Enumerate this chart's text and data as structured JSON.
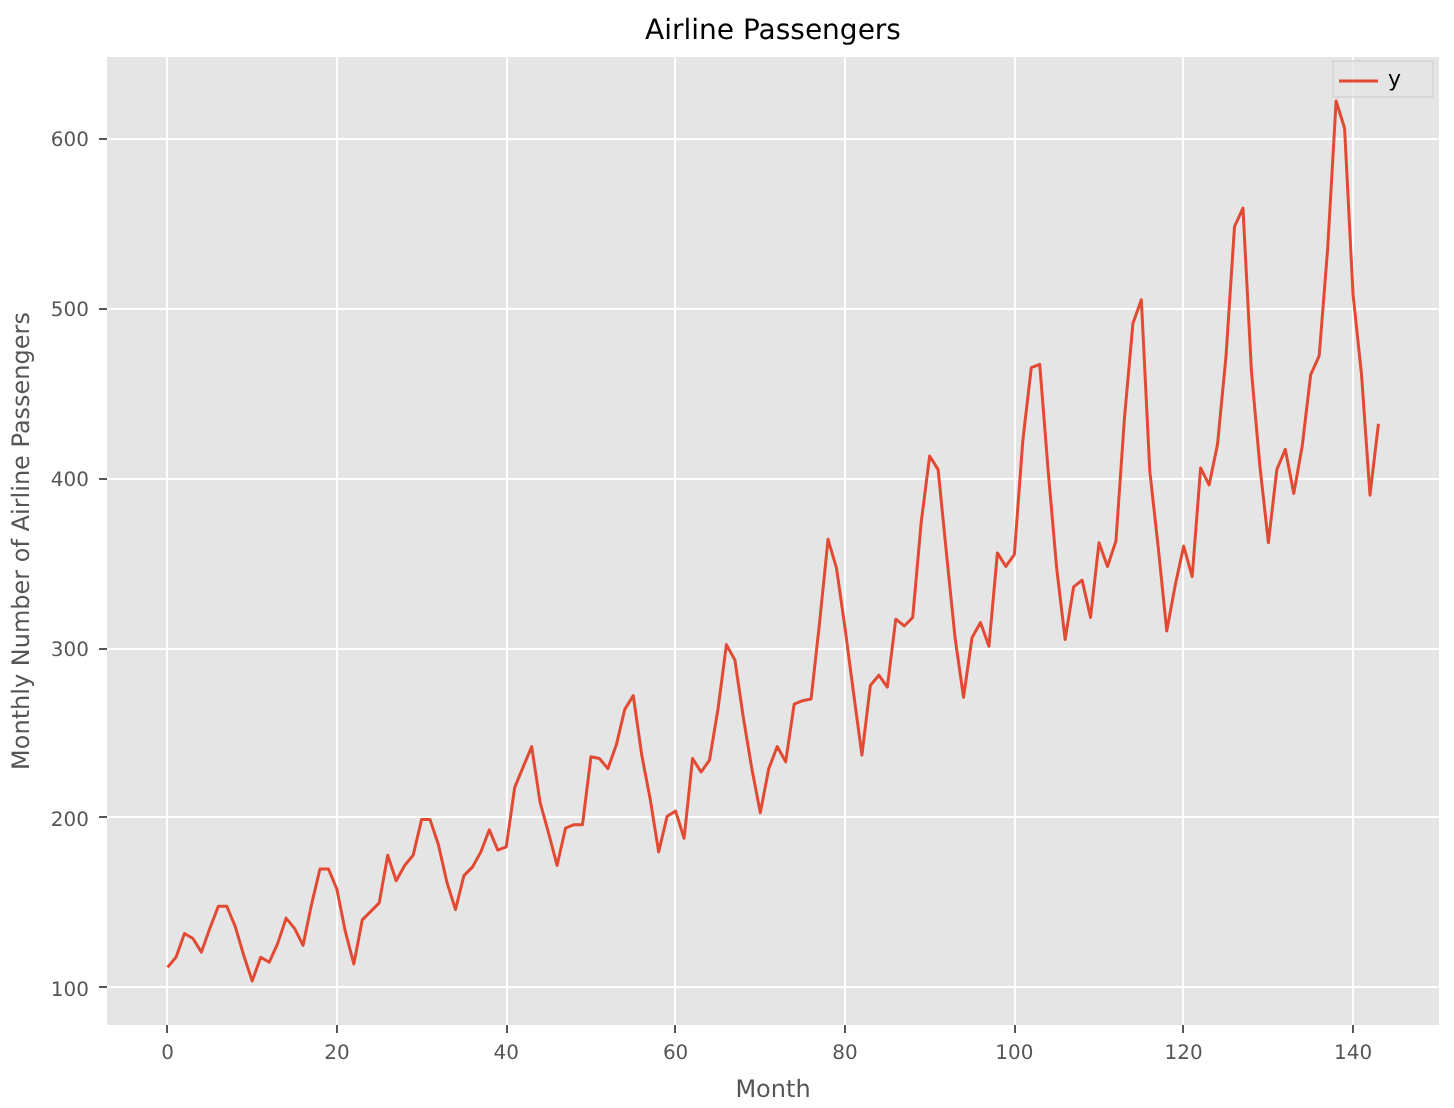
{
  "chart_data": {
    "type": "line",
    "title": "Airline Passengers",
    "xlabel": "Month",
    "ylabel": "Monthly Number of Airline Passengers",
    "x": [
      0,
      1,
      2,
      3,
      4,
      5,
      6,
      7,
      8,
      9,
      10,
      11,
      12,
      13,
      14,
      15,
      16,
      17,
      18,
      19,
      20,
      21,
      22,
      23,
      24,
      25,
      26,
      27,
      28,
      29,
      30,
      31,
      32,
      33,
      34,
      35,
      36,
      37,
      38,
      39,
      40,
      41,
      42,
      43,
      44,
      45,
      46,
      47,
      48,
      49,
      50,
      51,
      52,
      53,
      54,
      55,
      56,
      57,
      58,
      59,
      60,
      61,
      62,
      63,
      64,
      65,
      66,
      67,
      68,
      69,
      70,
      71,
      72,
      73,
      74,
      75,
      76,
      77,
      78,
      79,
      80,
      81,
      82,
      83,
      84,
      85,
      86,
      87,
      88,
      89,
      90,
      91,
      92,
      93,
      94,
      95,
      96,
      97,
      98,
      99,
      100,
      101,
      102,
      103,
      104,
      105,
      106,
      107,
      108,
      109,
      110,
      111,
      112,
      113,
      114,
      115,
      116,
      117,
      118,
      119,
      120,
      121,
      122,
      123,
      124,
      125,
      126,
      127,
      128,
      129,
      130,
      131,
      132,
      133,
      134,
      135,
      136,
      137,
      138,
      139,
      140,
      141,
      142,
      143
    ],
    "series": [
      {
        "name": "y",
        "color": "#e24a33",
        "values": [
          112,
          118,
          132,
          129,
          121,
          135,
          148,
          148,
          136,
          119,
          104,
          118,
          115,
          126,
          141,
          135,
          125,
          149,
          170,
          170,
          158,
          133,
          114,
          140,
          145,
          150,
          178,
          163,
          172,
          178,
          199,
          199,
          184,
          162,
          146,
          166,
          171,
          180,
          193,
          181,
          183,
          218,
          230,
          242,
          209,
          191,
          172,
          194,
          196,
          196,
          236,
          235,
          229,
          243,
          264,
          272,
          237,
          211,
          180,
          201,
          204,
          188,
          235,
          227,
          234,
          264,
          302,
          293,
          259,
          229,
          203,
          229,
          242,
          233,
          267,
          269,
          270,
          315,
          364,
          347,
          312,
          274,
          237,
          278,
          284,
          277,
          317,
          313,
          318,
          374,
          413,
          405,
          355,
          306,
          271,
          306,
          315,
          301,
          356,
          348,
          355,
          422,
          465,
          467,
          404,
          347,
          305,
          336,
          340,
          318,
          362,
          348,
          363,
          435,
          491,
          505,
          404,
          359,
          310,
          337,
          360,
          342,
          406,
          396,
          420,
          472,
          548,
          559,
          463,
          407,
          362,
          405,
          417,
          391,
          419,
          461,
          472,
          535,
          622,
          606,
          508,
          461,
          390,
          432
        ]
      }
    ],
    "xlim": [
      -7.15,
      150.15
    ],
    "ylim": [
      78.1,
      647.9
    ],
    "xticks": [
      0,
      20,
      40,
      60,
      80,
      100,
      120,
      140
    ],
    "yticks": [
      100,
      200,
      300,
      400,
      500,
      600
    ],
    "grid": true,
    "legend": "top right",
    "line_style": "solid",
    "marker": "none"
  }
}
